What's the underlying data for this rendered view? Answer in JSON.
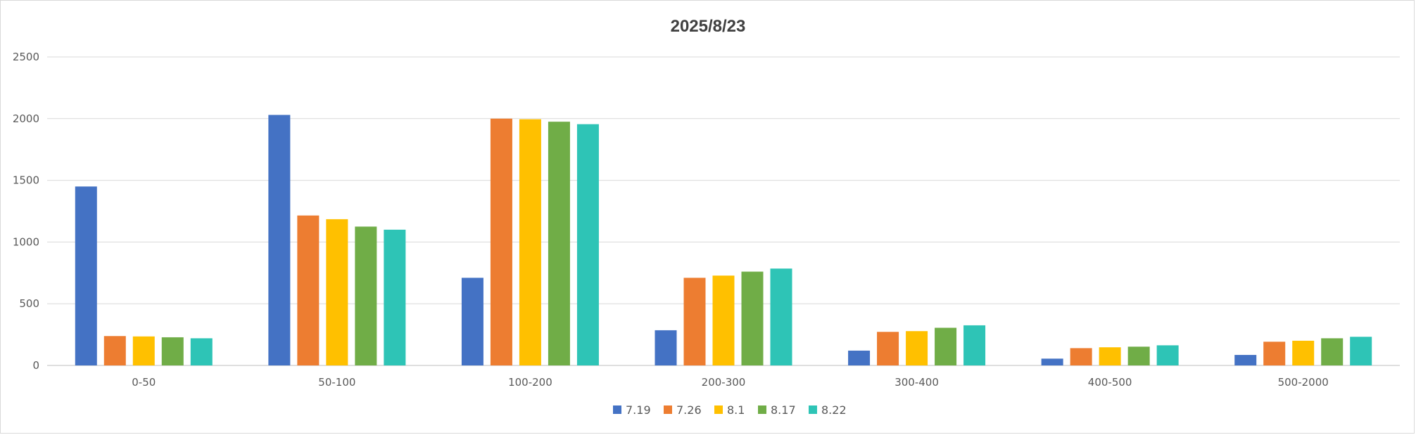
{
  "chart_data": {
    "type": "bar",
    "title": "2025/8/23",
    "xlabel": "",
    "ylabel": "",
    "ylim": [
      0,
      2500
    ],
    "yticks": [
      0,
      500,
      1000,
      1500,
      2000,
      2500
    ],
    "grid": true,
    "legend_position": "bottom",
    "categories": [
      "0-50",
      "50-100",
      "100-200",
      "200-300",
      "300-400",
      "400-500",
      "500-2000"
    ],
    "series": [
      {
        "name": "7.19",
        "color": "#4472C4",
        "values": [
          1450,
          2030,
          710,
          285,
          120,
          55,
          85
        ]
      },
      {
        "name": "7.26",
        "color": "#ED7D31",
        "values": [
          238,
          1215,
          2000,
          710,
          272,
          140,
          192
        ]
      },
      {
        "name": "8.1",
        "color": "#FFC000",
        "values": [
          235,
          1185,
          1995,
          728,
          278,
          147,
          200
        ]
      },
      {
        "name": "8.17",
        "color": "#70AD47",
        "values": [
          228,
          1125,
          1975,
          760,
          305,
          152,
          220
        ]
      },
      {
        "name": "8.22",
        "color": "#2EC4B6",
        "values": [
          220,
          1100,
          1955,
          785,
          325,
          163,
          232
        ]
      }
    ]
  }
}
